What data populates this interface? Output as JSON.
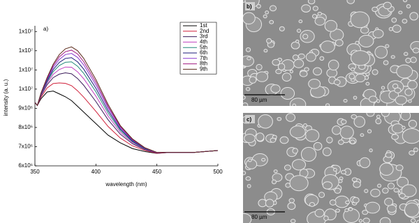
{
  "chart_data": {
    "type": "line",
    "annotation": "a)",
    "x_label": "wavelength (nm)",
    "y_label": "intensity (a. u.)",
    "x": [
      350,
      352,
      355,
      360,
      365,
      370,
      375,
      380,
      385,
      390,
      400,
      410,
      420,
      430,
      440,
      450,
      460,
      470,
      480,
      490,
      500
    ],
    "xlim": [
      350,
      500
    ],
    "xticks": [
      350,
      400,
      450,
      500
    ],
    "ylim": [
      6000000,
      13300000
    ],
    "yticks": [
      {
        "value": 6000000,
        "label": "6x10⁶"
      },
      {
        "value": 7000000,
        "label": "7x10⁶"
      },
      {
        "value": 8000000,
        "label": "8x10⁶"
      },
      {
        "value": 9000000,
        "label": "9x10⁶"
      },
      {
        "value": 10000000,
        "label": "1x10⁷"
      },
      {
        "value": 11000000,
        "label": "1x10⁷"
      },
      {
        "value": 12000000,
        "label": "1x10⁷"
      },
      {
        "value": 13000000,
        "label": "1x10⁷"
      }
    ],
    "legend": "upper right",
    "series": [
      {
        "name": "1st",
        "color": "#000000",
        "values": [
          9300000.0,
          9150000.0,
          9500000.0,
          9850000.0,
          9900000.0,
          9750000.0,
          9600000.0,
          9400000.0,
          9100000.0,
          8800000.0,
          8200000.0,
          7600000.0,
          7200000.0,
          6900000.0,
          6750000.0,
          6650000.0,
          6700000.0,
          6700000.0,
          6700000.0,
          6750000.0,
          6800000.0
        ]
      },
      {
        "name": "2nd",
        "color": "#d0203a",
        "values": [
          9300000.0,
          9150000.0,
          9580000.0,
          10060000.0,
          10290000.0,
          10320000.0,
          10300000.0,
          10180000.0,
          9910000.0,
          9580000.0,
          8840000.0,
          8050000.0,
          7450000.0,
          7040000.0,
          6810000.0,
          6660000.0,
          6700000.0,
          6700000.0,
          6700000.0,
          6750000.0,
          6800000.0
        ]
      },
      {
        "name": "3rd",
        "color": "#3a1a5a",
        "values": [
          9300000.0,
          9150000.0,
          9650000.0,
          10230000.0,
          10600000.0,
          10780000.0,
          10850000.0,
          10800000.0,
          10550000.0,
          10200000.0,
          9350000.0,
          8400000.0,
          7650000.0,
          7150000.0,
          6850000.0,
          6680000.0,
          6700000.0,
          6700000.0,
          6700000.0,
          6750000.0,
          6800000.0
        ]
      },
      {
        "name": "4th",
        "color": "#c040c0",
        "values": [
          9300000.0,
          9150000.0,
          9690000.0,
          10320000.0,
          10770000.0,
          11020000.0,
          11150000.0,
          11140000.0,
          10900000.0,
          10540000.0,
          9630000.0,
          8590000.0,
          7760000.0,
          7210000.0,
          6870000.0,
          6680000.0,
          6700000.0,
          6700000.0,
          6700000.0,
          6750000.0,
          6800000.0
        ]
      },
      {
        "name": "5th",
        "color": "#208878",
        "values": [
          9300000.0,
          9150000.0,
          9720000.0,
          10390000.0,
          10910000.0,
          11230000.0,
          11400000.0,
          11420000.0,
          11190000.0,
          10820000.0,
          9860000.0,
          8750000.0,
          7850000.0,
          7260000.0,
          6890000.0,
          6690000.0,
          6700000.0,
          6700000.0,
          6700000.0,
          6750000.0,
          6800000.0
        ]
      },
      {
        "name": "6th",
        "color": "#1a1a7a",
        "values": [
          9300000.0,
          9150000.0,
          9740000.0,
          10450000.0,
          11020000.0,
          11390000.0,
          11600000.0,
          11640000.0,
          11420000.0,
          11040000.0,
          10040000.0,
          8880000.0,
          7920000.0,
          7300000.0,
          6910000.0,
          6690000.0,
          6700000.0,
          6700000.0,
          6700000.0,
          6750000.0,
          6800000.0
        ]
      },
      {
        "name": "7th",
        "color": "#8a3ad0",
        "values": [
          9300000.0,
          9150000.0,
          9760000.0,
          10510000.0,
          11130000.0,
          11550000.0,
          11800000.0,
          11860000.0,
          11650000.0,
          11260000.0,
          10220000.0,
          9010000.0,
          7990000.0,
          7340000.0,
          6930000.0,
          6690000.0,
          6700000.0,
          6700000.0,
          6700000.0,
          6750000.0,
          6800000.0
        ]
      },
      {
        "name": "8th",
        "color": "#a01880",
        "values": [
          9300000.0,
          9150000.0,
          9780000.0,
          10560000.0,
          11220000.0,
          11680000.0,
          11950000.0,
          12030000.0,
          11830000.0,
          11430000.0,
          10360000.0,
          9100000.0,
          8050000.0,
          7370000.0,
          6940000.0,
          6700000.0,
          6700000.0,
          6700000.0,
          6700000.0,
          6750000.0,
          6800000.0
        ]
      },
      {
        "name": "9th",
        "color": "#5a2a1a",
        "values": [
          9300000.0,
          9150000.0,
          9800000.0,
          10600000.0,
          11300000.0,
          11800000.0,
          12100000.0,
          12200000.0,
          12000000.0,
          11600000.0,
          10500000.0,
          9200000.0,
          8100000.0,
          7400000.0,
          6950000.0,
          6700000.0,
          6700000.0,
          6700000.0,
          6700000.0,
          6750000.0,
          6800000.0
        ]
      }
    ]
  },
  "panels": [
    {
      "label": "b)",
      "scale": "80 µm"
    },
    {
      "label": "c)",
      "scale": "80 µm"
    }
  ]
}
